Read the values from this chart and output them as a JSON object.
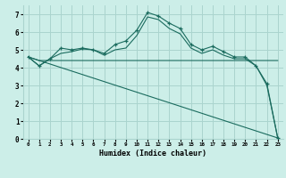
{
  "xlabel": "Humidex (Indice chaleur)",
  "bg_color": "#cceee8",
  "grid_color": "#aad4ce",
  "line_color": "#1a6b5e",
  "xlim": [
    -0.5,
    23.5
  ],
  "ylim": [
    0,
    7.5
  ],
  "xticks": [
    0,
    1,
    2,
    3,
    4,
    5,
    6,
    7,
    8,
    9,
    10,
    11,
    12,
    13,
    14,
    15,
    16,
    17,
    18,
    19,
    20,
    21,
    22,
    23
  ],
  "yticks": [
    0,
    1,
    2,
    3,
    4,
    5,
    6,
    7
  ],
  "series1_x": [
    0,
    1,
    2,
    3,
    4,
    5,
    6,
    7,
    8,
    9,
    10,
    11,
    12,
    13,
    14,
    15,
    16,
    17,
    18,
    19,
    20,
    21,
    22,
    23
  ],
  "series1_y": [
    4.6,
    4.1,
    4.5,
    5.1,
    5.0,
    5.1,
    5.0,
    4.8,
    5.3,
    5.5,
    6.1,
    7.1,
    6.9,
    6.5,
    6.2,
    5.3,
    5.0,
    5.2,
    4.9,
    4.6,
    4.6,
    4.1,
    3.1,
    0.05
  ],
  "series2_x": [
    0,
    1,
    2,
    3,
    4,
    5,
    6,
    7,
    8,
    9,
    10,
    11,
    12,
    13,
    14,
    15,
    16,
    17,
    18,
    19,
    20,
    21,
    22,
    23
  ],
  "series2_y": [
    4.6,
    4.1,
    4.5,
    4.8,
    4.9,
    5.05,
    5.0,
    4.7,
    5.0,
    5.1,
    5.8,
    6.85,
    6.7,
    6.2,
    5.9,
    5.1,
    4.8,
    5.0,
    4.7,
    4.5,
    4.5,
    4.1,
    3.0,
    0.05
  ],
  "series3_x": [
    0,
    23
  ],
  "series3_y": [
    4.6,
    0.05
  ],
  "series4_x": [
    0,
    1,
    2,
    3,
    4,
    5,
    6,
    7,
    8,
    9,
    10,
    11,
    12,
    13,
    14,
    15,
    16,
    17,
    18,
    19,
    20,
    21,
    22,
    23
  ],
  "series4_y": [
    4.6,
    4.4,
    4.4,
    4.4,
    4.4,
    4.4,
    4.4,
    4.4,
    4.4,
    4.4,
    4.4,
    4.4,
    4.4,
    4.4,
    4.4,
    4.4,
    4.4,
    4.4,
    4.4,
    4.4,
    4.4,
    4.4,
    4.4,
    4.4
  ]
}
